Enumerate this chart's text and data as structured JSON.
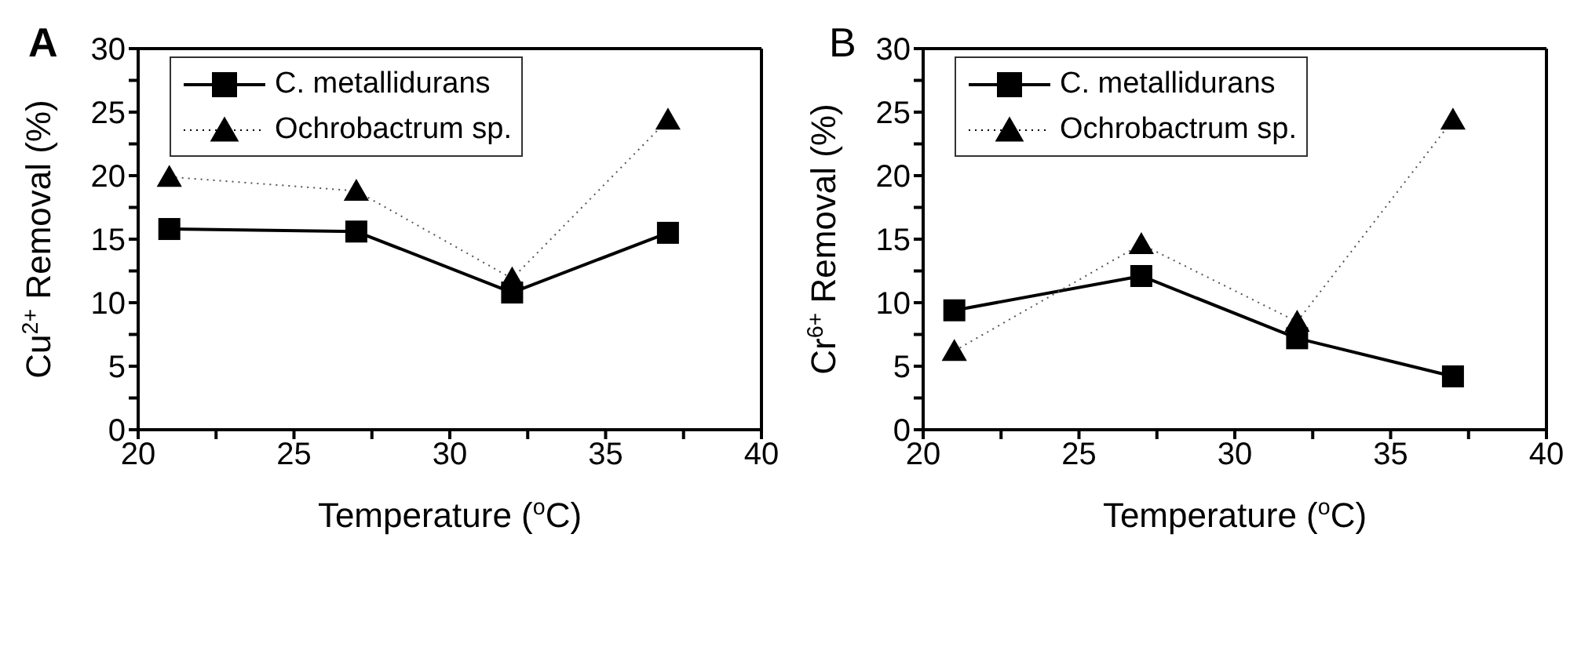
{
  "chart_data": [
    {
      "type": "line",
      "title": "A",
      "xlabel": "Temperature ($^{o}$C)",
      "ylabel": "Cu$^{2+}$ Removal (%)",
      "x": [
        21,
        27,
        32,
        37
      ],
      "series": [
        {
          "name": "C. metallidurans",
          "color": "#000000",
          "values": [
            15.8,
            15.6,
            10.8,
            15.5
          ],
          "marker": "square",
          "line_style": "solid"
        },
        {
          "name": "Ochrobactrum sp.",
          "color": "#000000",
          "values": [
            19.9,
            18.8,
            11.9,
            24.4
          ],
          "marker": "triangle",
          "line_style": "dotted"
        }
      ],
      "xlim": [
        20,
        40
      ],
      "xticks": [
        20,
        {
          "value": 22.5,
          "label": null
        },
        25,
        {
          "value": 27.5,
          "label": null
        },
        30,
        {
          "value": 32.5,
          "label": null
        },
        35,
        {
          "value": 37.5,
          "label": null
        },
        40
      ],
      "ylim": [
        0,
        30
      ],
      "yticks": [
        0,
        {
          "value": 2.5,
          "label": null
        },
        5,
        {
          "value": 7.5,
          "label": null
        },
        10,
        {
          "value": 12.5,
          "label": null
        },
        15,
        {
          "value": 17.5,
          "label": null
        },
        20,
        {
          "value": 22.5,
          "label": null
        },
        25,
        {
          "value": 27.5,
          "label": null
        },
        30
      ],
      "legend": "top left",
      "grid": false
    },
    {
      "type": "line",
      "title": "B",
      "xlabel": "Temperature ($^{o}$C)",
      "ylabel": "Cr$^{6+}$ Removal (%)",
      "x": [
        21,
        27,
        32,
        37
      ],
      "series": [
        {
          "name": "C. metallidurans",
          "color": "#000000",
          "values": [
            9.4,
            12.1,
            7.2,
            4.2
          ],
          "marker": "square",
          "line_style": "solid"
        },
        {
          "name": "Ochrobactrum sp.",
          "color": "#000000",
          "values": [
            6.2,
            14.6,
            8.5,
            24.4
          ],
          "marker": "triangle",
          "line_style": "dotted"
        }
      ],
      "xlim": [
        20,
        40
      ],
      "xticks": [
        20,
        {
          "value": 22.5,
          "label": null
        },
        25,
        {
          "value": 27.5,
          "label": null
        },
        30,
        {
          "value": 32.5,
          "label": null
        },
        35,
        {
          "value": 37.5,
          "label": null
        },
        40
      ],
      "ylim": [
        0,
        30
      ],
      "yticks": [
        0,
        {
          "value": 2.5,
          "label": null
        },
        5,
        {
          "value": 7.5,
          "label": null
        },
        10,
        {
          "value": 12.5,
          "label": null
        },
        15,
        {
          "value": 17.5,
          "label": null
        },
        20,
        {
          "value": 22.5,
          "label": null
        },
        25,
        {
          "value": 27.5,
          "label": null
        },
        30
      ],
      "legend": "top left",
      "grid": false
    }
  ]
}
